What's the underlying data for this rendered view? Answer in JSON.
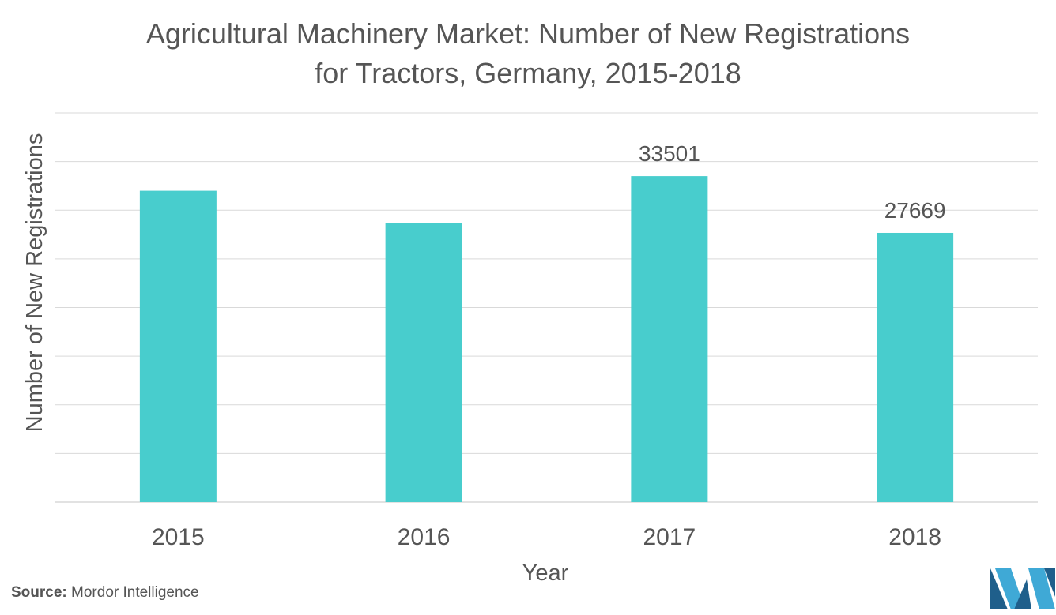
{
  "title": {
    "line1": "Agricultural Machinery Market: Number of New Registrations",
    "line2": "for Tractors, Germany, 2015-2018"
  },
  "source": {
    "label": "Source:",
    "text": "Mordor Intelligence"
  },
  "logo": {
    "icon": "mordor-intelligence-logo-icon"
  },
  "colors": {
    "bar": "#48cdcd",
    "grid": "#d9d9d9",
    "text": "#555555",
    "logo_dark": "#1f5f8b",
    "logo_light": "#3fa9d6"
  },
  "chart_data": {
    "type": "bar",
    "categories": [
      "2015",
      "2016",
      "2017",
      "2018"
    ],
    "values": [
      32000,
      28700,
      33501,
      27669
    ],
    "data_labels": [
      "",
      "",
      "33501",
      "27669"
    ],
    "xlabel": "Year",
    "ylabel": "Number of New Registrations",
    "ylim": [
      0,
      40000
    ],
    "gridlines": 8,
    "grid": true,
    "legend": "none"
  }
}
